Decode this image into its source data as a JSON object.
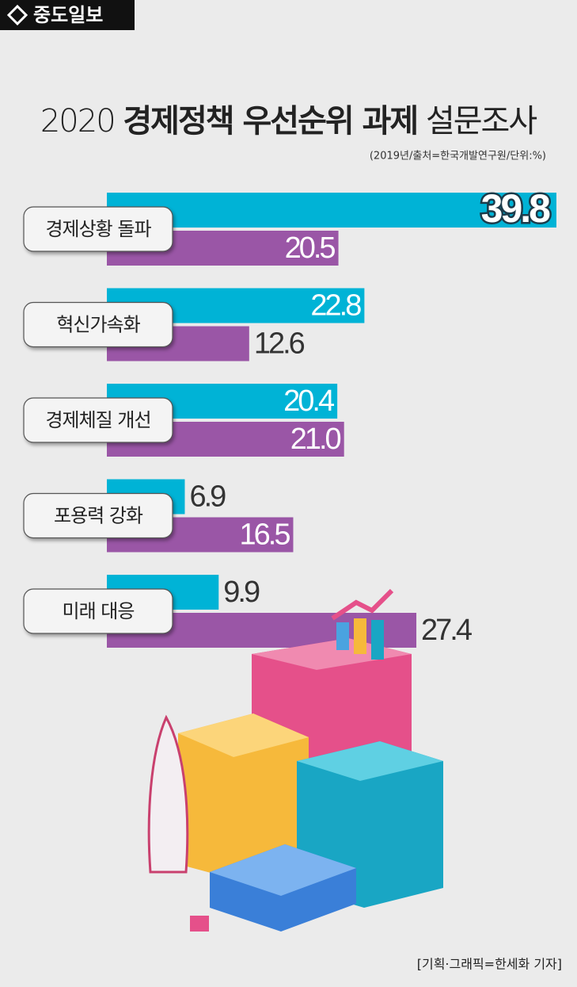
{
  "logo": "중도일보",
  "chart_data": {
    "type": "bar",
    "title_parts": [
      "2020",
      "경제정책 우선순위 과제",
      "설문조사"
    ],
    "subtitle": "(2019년/출처=한국개발연구원/단위:%)",
    "categories": [
      "경제상황 돌파",
      "혁신가속화",
      "경제체질 개선",
      "포용력 강화",
      "미래 대응"
    ],
    "series": [
      {
        "color": "#00b3d6",
        "values": [
          39.8,
          22.8,
          20.4,
          6.9,
          9.9
        ],
        "value_labels": [
          "39.8",
          "22.8",
          "20.4",
          "6.9",
          "9.9"
        ]
      },
      {
        "color": "#9a56a6",
        "values": [
          20.5,
          12.6,
          21.0,
          16.5,
          27.4
        ],
        "value_labels": [
          "20.5",
          "12.6",
          "21.0",
          "16.5",
          "27.4"
        ]
      }
    ],
    "credit": "[기획·그래픽=한세화 기자]"
  }
}
